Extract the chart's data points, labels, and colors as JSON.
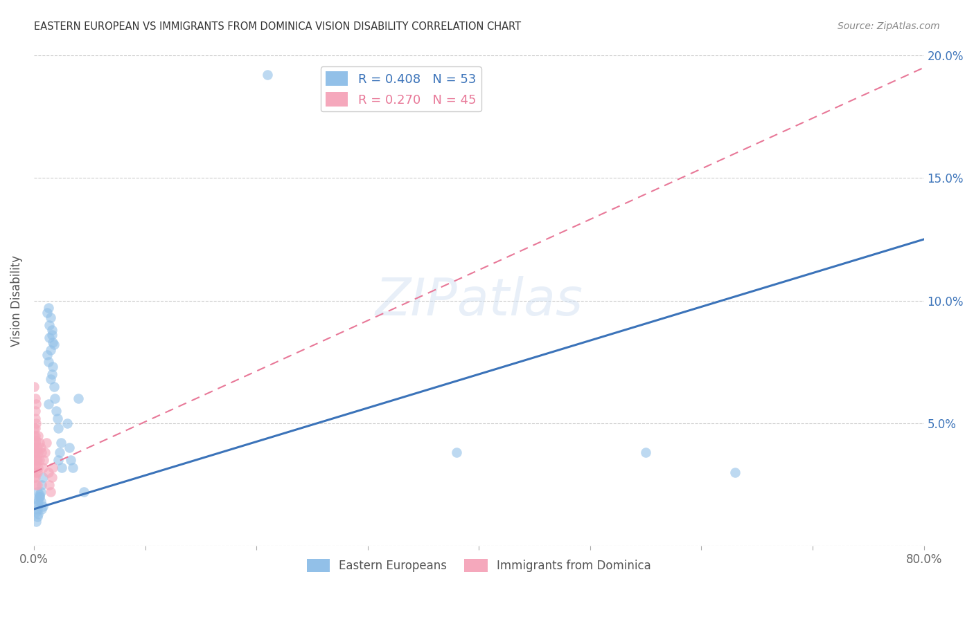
{
  "title": "EASTERN EUROPEAN VS IMMIGRANTS FROM DOMINICA VISION DISABILITY CORRELATION CHART",
  "source": "Source: ZipAtlas.com",
  "ylabel": "Vision Disability",
  "xlim": [
    0,
    0.8
  ],
  "ylim": [
    0,
    0.2
  ],
  "xticks": [
    0.0,
    0.1,
    0.2,
    0.3,
    0.4,
    0.5,
    0.6,
    0.7,
    0.8
  ],
  "xticklabels": [
    "0.0%",
    "",
    "",
    "",
    "",
    "",
    "",
    "",
    "80.0%"
  ],
  "yticks": [
    0.0,
    0.05,
    0.1,
    0.15,
    0.2
  ],
  "yticklabels_right": [
    "",
    "5.0%",
    "10.0%",
    "15.0%",
    "20.0%"
  ],
  "blue_color": "#92c0e8",
  "blue_line_color": "#3b73b9",
  "pink_color": "#f5a8bc",
  "pink_line_color": "#e87898",
  "watermark": "ZIPatlas",
  "legend_r1": "R = 0.408",
  "legend_n1": "N = 53",
  "legend_r2": "R = 0.270",
  "legend_n2": "N = 45",
  "blue_trendline_x": [
    0.0,
    0.8
  ],
  "blue_trendline_y": [
    0.015,
    0.125
  ],
  "pink_trendline_x": [
    0.0,
    0.1
  ],
  "pink_trendline_y": [
    0.03,
    0.068
  ],
  "eastern_europeans_x": [
    0.21,
    0.005,
    0.006,
    0.007,
    0.008,
    0.004,
    0.003,
    0.004,
    0.003,
    0.005,
    0.002,
    0.012,
    0.013,
    0.014,
    0.015,
    0.016,
    0.016,
    0.017,
    0.018,
    0.015,
    0.014,
    0.012,
    0.013,
    0.017,
    0.016,
    0.015,
    0.018,
    0.019,
    0.013,
    0.02,
    0.021,
    0.022,
    0.024,
    0.023,
    0.022,
    0.025,
    0.03,
    0.032,
    0.033,
    0.035,
    0.04,
    0.045,
    0.38,
    0.55,
    0.63,
    0.002,
    0.003,
    0.003,
    0.004,
    0.005,
    0.006,
    0.007,
    0.008
  ],
  "eastern_europeans_y": [
    0.192,
    0.02,
    0.018,
    0.015,
    0.016,
    0.013,
    0.022,
    0.017,
    0.019,
    0.021,
    0.014,
    0.095,
    0.097,
    0.09,
    0.093,
    0.086,
    0.088,
    0.083,
    0.082,
    0.08,
    0.085,
    0.078,
    0.075,
    0.073,
    0.07,
    0.068,
    0.065,
    0.06,
    0.058,
    0.055,
    0.052,
    0.048,
    0.042,
    0.038,
    0.035,
    0.032,
    0.05,
    0.04,
    0.035,
    0.032,
    0.06,
    0.022,
    0.038,
    0.038,
    0.03,
    0.01,
    0.012,
    0.015,
    0.018,
    0.02,
    0.022,
    0.025,
    0.028
  ],
  "dominica_x": [
    0.001,
    0.001,
    0.001,
    0.001,
    0.001,
    0.002,
    0.002,
    0.002,
    0.002,
    0.0,
    0.0,
    0.0,
    0.0,
    0.0,
    0.0,
    0.0,
    0.0,
    0.0,
    0.001,
    0.001,
    0.001,
    0.001,
    0.002,
    0.002,
    0.002,
    0.003,
    0.003,
    0.003,
    0.003,
    0.004,
    0.004,
    0.004,
    0.005,
    0.005,
    0.006,
    0.007,
    0.008,
    0.009,
    0.01,
    0.011,
    0.013,
    0.014,
    0.015,
    0.016,
    0.017
  ],
  "dominica_y": [
    0.06,
    0.055,
    0.052,
    0.048,
    0.045,
    0.058,
    0.05,
    0.043,
    0.038,
    0.065,
    0.048,
    0.045,
    0.042,
    0.04,
    0.038,
    0.035,
    0.032,
    0.028,
    0.042,
    0.038,
    0.033,
    0.028,
    0.035,
    0.03,
    0.025,
    0.04,
    0.035,
    0.03,
    0.025,
    0.045,
    0.038,
    0.032,
    0.042,
    0.035,
    0.04,
    0.038,
    0.032,
    0.035,
    0.038,
    0.042,
    0.03,
    0.025,
    0.022,
    0.028,
    0.032
  ]
}
